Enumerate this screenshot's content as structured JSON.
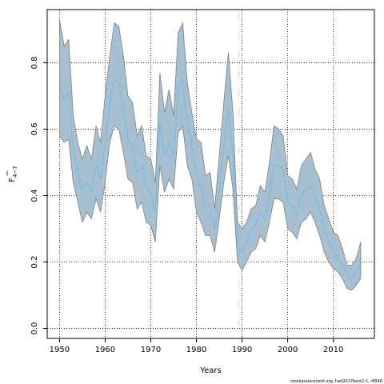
{
  "chart_data": {
    "type": "area",
    "xlabel": "Years",
    "ylabel": "F",
    "ylabel_overbar": true,
    "ylabel_subscript": "4−7",
    "footer": "stockassessment.org, had2017best2-1, r8546",
    "xlim": [
      1947.3,
      2019.0
    ],
    "ylim": [
      -0.03,
      0.96
    ],
    "x_ticks": [
      1950,
      1960,
      1970,
      1980,
      1990,
      2000,
      2010
    ],
    "y_ticks": [
      0.0,
      0.2,
      0.4,
      0.6,
      0.8
    ],
    "y_tick_labels": [
      "0.0",
      "0.2",
      "0.4",
      "0.6",
      "0.8"
    ],
    "grid": true,
    "band_color": "#a6bfd1",
    "band_edge_color": "#7f7f7f",
    "line_color": "#5bb5e8",
    "years": [
      1950,
      1951,
      1952,
      1953,
      1954,
      1955,
      1956,
      1957,
      1958,
      1959,
      1960,
      1961,
      1962,
      1963,
      1964,
      1965,
      1966,
      1967,
      1968,
      1969,
      1970,
      1971,
      1972,
      1973,
      1974,
      1975,
      1976,
      1977,
      1978,
      1979,
      1980,
      1981,
      1982,
      1983,
      1984,
      1985,
      1986,
      1987,
      1988,
      1989,
      1990,
      1991,
      1992,
      1993,
      1994,
      1995,
      1996,
      1997,
      1998,
      1999,
      2000,
      2001,
      2002,
      2003,
      2004,
      2005,
      2006,
      2007,
      2008,
      2009,
      2010,
      2011,
      2012,
      2013,
      2014,
      2015,
      2016
    ],
    "series": [
      {
        "name": "upper",
        "values": [
          0.93,
          0.85,
          0.87,
          0.64,
          0.56,
          0.51,
          0.55,
          0.51,
          0.61,
          0.56,
          0.7,
          0.82,
          0.92,
          0.91,
          0.82,
          0.7,
          0.68,
          0.58,
          0.61,
          0.52,
          0.51,
          0.44,
          0.77,
          0.65,
          0.72,
          0.64,
          0.89,
          0.92,
          0.74,
          0.65,
          0.57,
          0.56,
          0.46,
          0.47,
          0.36,
          0.52,
          0.68,
          0.83,
          0.65,
          0.32,
          0.3,
          0.32,
          0.36,
          0.37,
          0.43,
          0.41,
          0.5,
          0.61,
          0.6,
          0.58,
          0.46,
          0.45,
          0.42,
          0.49,
          0.51,
          0.53,
          0.48,
          0.45,
          0.37,
          0.33,
          0.29,
          0.28,
          0.24,
          0.19,
          0.19,
          0.21,
          0.26
        ]
      },
      {
        "name": "estimate",
        "values": [
          0.74,
          0.69,
          0.71,
          0.54,
          0.47,
          0.42,
          0.44,
          0.41,
          0.49,
          0.45,
          0.55,
          0.68,
          0.75,
          0.74,
          0.66,
          0.57,
          0.55,
          0.47,
          0.49,
          0.42,
          0.41,
          0.35,
          0.62,
          0.52,
          0.56,
          0.52,
          0.72,
          0.75,
          0.62,
          0.55,
          0.46,
          0.42,
          0.37,
          0.37,
          0.3,
          0.42,
          0.55,
          0.66,
          0.52,
          0.26,
          0.23,
          0.26,
          0.3,
          0.31,
          0.35,
          0.33,
          0.4,
          0.49,
          0.49,
          0.48,
          0.38,
          0.37,
          0.34,
          0.4,
          0.42,
          0.43,
          0.4,
          0.36,
          0.3,
          0.26,
          0.23,
          0.21,
          0.19,
          0.16,
          0.15,
          0.17,
          0.2
        ]
      },
      {
        "name": "lower",
        "values": [
          0.58,
          0.56,
          0.57,
          0.44,
          0.38,
          0.32,
          0.35,
          0.33,
          0.39,
          0.35,
          0.44,
          0.56,
          0.61,
          0.6,
          0.53,
          0.45,
          0.44,
          0.36,
          0.38,
          0.32,
          0.31,
          0.26,
          0.49,
          0.41,
          0.45,
          0.42,
          0.59,
          0.61,
          0.49,
          0.45,
          0.35,
          0.32,
          0.28,
          0.28,
          0.23,
          0.33,
          0.44,
          0.52,
          0.42,
          0.2,
          0.175,
          0.2,
          0.23,
          0.24,
          0.28,
          0.26,
          0.32,
          0.39,
          0.39,
          0.38,
          0.3,
          0.29,
          0.27,
          0.32,
          0.33,
          0.35,
          0.32,
          0.28,
          0.23,
          0.2,
          0.18,
          0.17,
          0.15,
          0.12,
          0.115,
          0.13,
          0.15
        ]
      }
    ]
  }
}
